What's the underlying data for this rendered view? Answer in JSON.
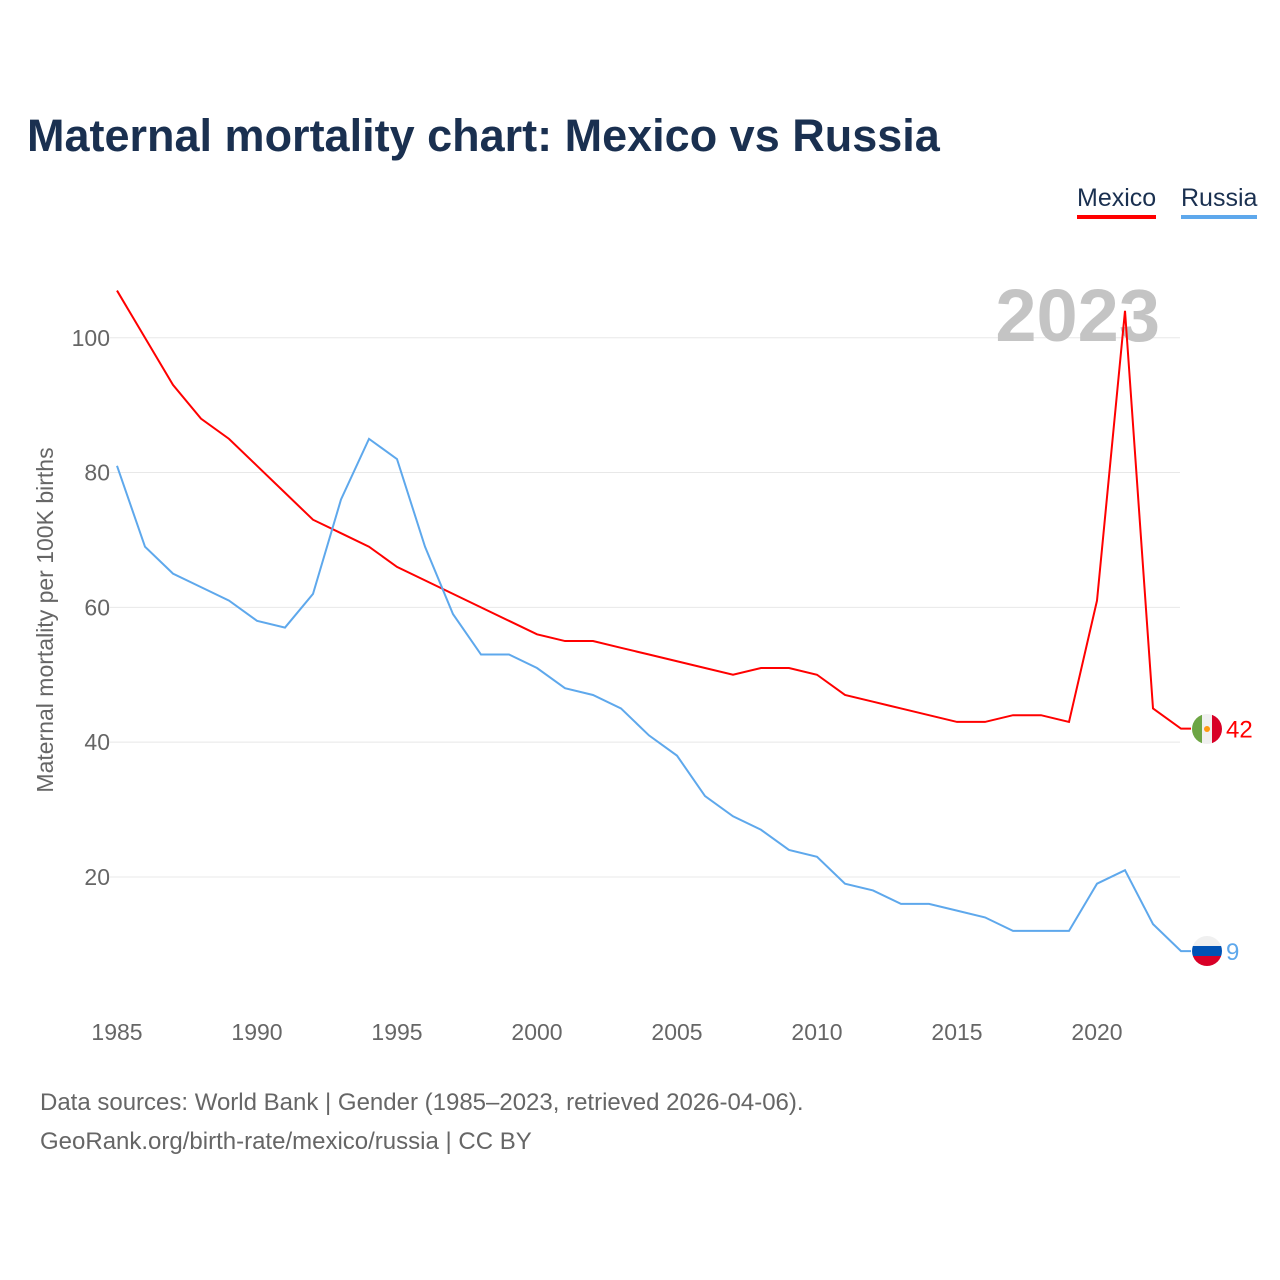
{
  "chart_data": {
    "type": "line",
    "title": "Maternal mortality chart: Mexico vs Russia",
    "ylabel": "Maternal mortality per 100K births",
    "xlabel": "",
    "year_label": "2023",
    "xlim": [
      1985,
      2023
    ],
    "ylim": [
      0,
      110
    ],
    "x_ticks": [
      1985,
      1990,
      1995,
      2000,
      2005,
      2010,
      2015,
      2020
    ],
    "y_ticks": [
      20,
      40,
      60,
      80,
      100
    ],
    "grid": true,
    "legend_position": "top-right",
    "x": [
      1985,
      1986,
      1987,
      1988,
      1989,
      1990,
      1991,
      1992,
      1993,
      1994,
      1995,
      1996,
      1997,
      1998,
      1999,
      2000,
      2001,
      2002,
      2003,
      2004,
      2005,
      2006,
      2007,
      2008,
      2009,
      2010,
      2011,
      2012,
      2013,
      2014,
      2015,
      2016,
      2017,
      2018,
      2019,
      2020,
      2021,
      2022,
      2023
    ],
    "series": [
      {
        "name": "Mexico",
        "color": "#ff0000",
        "end_label": "42",
        "values": [
          107,
          100,
          93,
          88,
          85,
          81,
          77,
          73,
          71,
          69,
          66,
          64,
          62,
          60,
          58,
          56,
          55,
          55,
          54,
          53,
          52,
          51,
          50,
          51,
          51,
          50,
          47,
          46,
          45,
          44,
          43,
          43,
          44,
          44,
          43,
          61,
          104,
          45,
          42
        ]
      },
      {
        "name": "Russia",
        "color": "#5ea8ec",
        "end_label": "9",
        "values": [
          81,
          69,
          65,
          63,
          61,
          58,
          57,
          62,
          76,
          85,
          82,
          69,
          59,
          53,
          53,
          51,
          48,
          47,
          45,
          41,
          38,
          32,
          29,
          27,
          24,
          23,
          19,
          18,
          16,
          16,
          15,
          14,
          12,
          12,
          12,
          19,
          21,
          13,
          9
        ]
      }
    ]
  },
  "footer": {
    "line1": "Data sources: World Bank | Gender (1985–2023, retrieved 2026-04-06).",
    "line2": "GeoRank.org/birth-rate/mexico/russia | CC BY"
  }
}
